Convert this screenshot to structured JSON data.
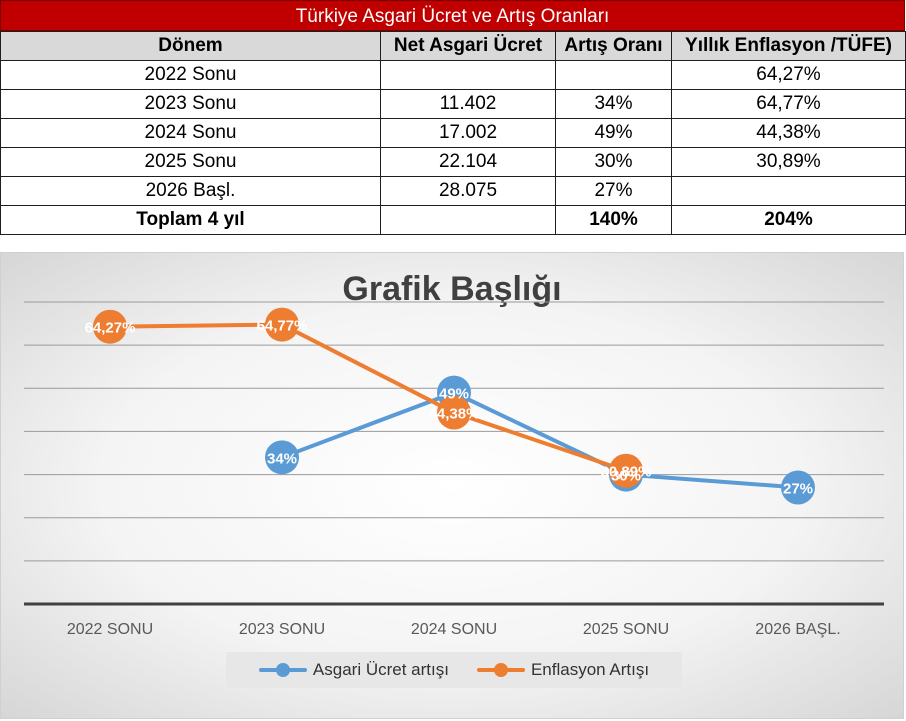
{
  "sheet": {
    "title": "Türkiye Asgari Ücret ve Artış Oranları",
    "headers": [
      "Dönem",
      "Net Asgari Ücret",
      "Artış Oranı",
      "Yıllık Enflasyon /TÜFE)"
    ],
    "rows": [
      [
        "2022 Sonu",
        "",
        "",
        "64,27%"
      ],
      [
        "2023 Sonu",
        "11.402",
        "34%",
        "64,77%"
      ],
      [
        "2024 Sonu",
        "17.002",
        "49%",
        "44,38%"
      ],
      [
        "2025 Sonu",
        "22.104",
        "30%",
        "30,89%"
      ],
      [
        "2026 Başl.",
        "28.075",
        "27%",
        ""
      ]
    ],
    "total": [
      "Toplam 4 yıl",
      "",
      "140%",
      "204%"
    ]
  },
  "chart_data": {
    "type": "line",
    "title": "Grafik Başlığı",
    "categories": [
      "2022 SONU",
      "2023 SONU",
      "2024 SONU",
      "2025 SONU",
      "2026 BAŞL."
    ],
    "series": [
      {
        "name": "Asgari Ücret artışı",
        "values": [
          null,
          34,
          49,
          30,
          27
        ],
        "labels": [
          null,
          "34%",
          "49%",
          "30%",
          "27%"
        ],
        "color": "#5b9bd5"
      },
      {
        "name": "Enflasyon Artışı",
        "values": [
          64.27,
          64.77,
          44.38,
          30.89,
          null
        ],
        "labels": [
          "64,27%",
          "64,77%",
          "44,38%",
          "30,89%",
          null
        ],
        "color": "#ed7d31"
      }
    ],
    "ylim": [
      0,
      70
    ],
    "grid": true,
    "legend": "bottom"
  }
}
